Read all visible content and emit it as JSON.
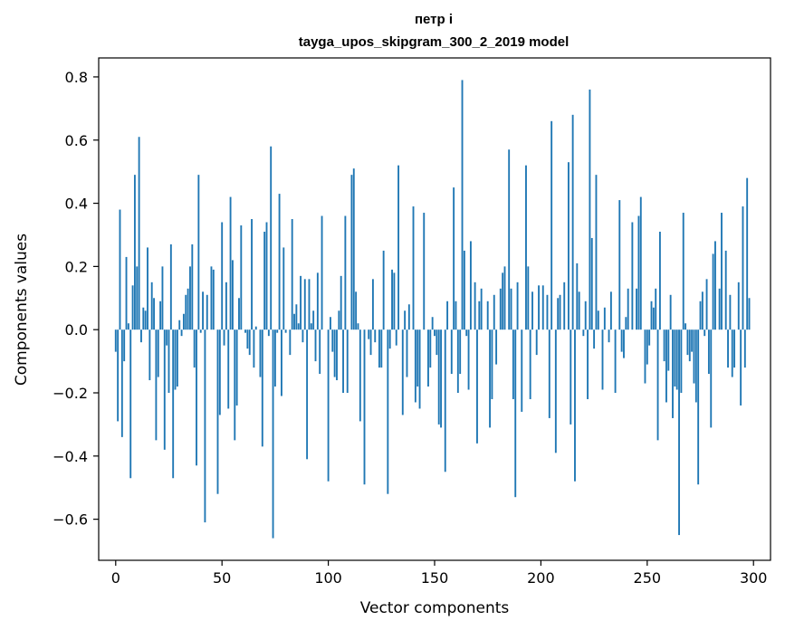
{
  "chart_data": {
    "type": "bar",
    "title": "петр i",
    "subtitle": "tayga_upos_skipgram_300_2_2019 model",
    "xlabel": "Vector components",
    "ylabel": "Components values",
    "xlim": [
      -8,
      308
    ],
    "ylim": [
      -0.73,
      0.86
    ],
    "xticks": [
      0,
      50,
      100,
      150,
      200,
      250,
      300
    ],
    "yticks": [
      -0.6,
      -0.4,
      -0.2,
      0.0,
      0.2,
      0.4,
      0.6,
      0.8
    ],
    "xtick_labels": [
      "0",
      "50",
      "100",
      "150",
      "200",
      "250",
      "300"
    ],
    "ytick_labels": [
      "−0.6",
      "−0.4",
      "−0.2",
      "0.0",
      "0.2",
      "0.4",
      "0.6",
      "0.8"
    ],
    "grid": false,
    "bar_color": "#1f77b4",
    "x": "0..299",
    "values": [
      -0.07,
      -0.29,
      0.38,
      -0.34,
      -0.1,
      0.23,
      0.02,
      -0.47,
      0.14,
      0.49,
      0.2,
      0.61,
      -0.04,
      0.07,
      0.06,
      0.26,
      -0.16,
      0.15,
      0.1,
      -0.35,
      -0.15,
      0.09,
      0.2,
      -0.38,
      -0.05,
      -0.2,
      0.27,
      -0.47,
      -0.19,
      -0.18,
      0.03,
      -0.02,
      0.05,
      0.11,
      0.13,
      0.2,
      0.27,
      -0.12,
      -0.43,
      0.49,
      -0.01,
      0.12,
      -0.61,
      0.11,
      0.0,
      0.2,
      0.19,
      0.0,
      -0.52,
      -0.27,
      0.34,
      -0.05,
      0.15,
      -0.25,
      0.42,
      0.22,
      -0.35,
      -0.24,
      0.1,
      0.33,
      0.0,
      -0.01,
      -0.06,
      -0.08,
      0.35,
      -0.12,
      0.01,
      0.0,
      -0.15,
      -0.37,
      0.31,
      0.34,
      -0.02,
      0.58,
      -0.66,
      -0.18,
      -0.01,
      0.43,
      -0.21,
      0.26,
      -0.01,
      0.0,
      -0.08,
      0.35,
      0.05,
      0.08,
      0.02,
      0.17,
      -0.04,
      0.16,
      -0.41,
      0.16,
      0.02,
      0.06,
      -0.1,
      0.18,
      -0.14,
      0.36,
      0.0,
      0.0,
      -0.48,
      0.04,
      -0.07,
      -0.15,
      -0.16,
      0.06,
      0.17,
      -0.2,
      0.36,
      -0.2,
      0.0,
      0.49,
      0.51,
      0.12,
      0.02,
      -0.29,
      0.0,
      -0.49,
      0.0,
      -0.03,
      -0.08,
      0.16,
      -0.04,
      0.0,
      -0.12,
      -0.12,
      0.25,
      0.0,
      -0.52,
      -0.06,
      0.19,
      0.18,
      -0.05,
      0.52,
      0.0,
      -0.27,
      0.06,
      -0.15,
      0.08,
      0.0,
      0.39,
      -0.23,
      -0.18,
      -0.25,
      0.0,
      0.37,
      0.0,
      -0.18,
      -0.12,
      0.04,
      -0.02,
      -0.08,
      -0.3,
      -0.31,
      0.0,
      -0.45,
      0.09,
      0.0,
      -0.14,
      0.45,
      0.09,
      -0.2,
      -0.14,
      0.79,
      0.25,
      -0.02,
      -0.19,
      0.28,
      0.0,
      0.15,
      -0.36,
      0.09,
      0.13,
      0.0,
      0.0,
      0.09,
      -0.31,
      -0.22,
      0.11,
      -0.11,
      0.0,
      0.13,
      0.18,
      0.2,
      0.0,
      0.57,
      0.13,
      -0.22,
      -0.53,
      0.15,
      0.0,
      -0.26,
      0.0,
      0.52,
      0.2,
      -0.22,
      0.12,
      0.0,
      -0.08,
      0.14,
      0.0,
      0.14,
      0.0,
      0.11,
      -0.28,
      0.66,
      0.0,
      -0.39,
      0.1,
      0.11,
      0.0,
      0.15,
      0.0,
      0.53,
      -0.3,
      0.68,
      -0.48,
      0.21,
      0.12,
      0.0,
      -0.02,
      0.09,
      -0.22,
      0.76,
      0.29,
      -0.06,
      0.49,
      0.06,
      0.0,
      -0.19,
      0.07,
      0.0,
      -0.04,
      0.12,
      0.0,
      -0.2,
      0.0,
      0.41,
      -0.07,
      -0.09,
      0.04,
      0.13,
      0.0,
      0.34,
      0.0,
      0.13,
      0.36,
      0.42,
      0.0,
      -0.17,
      -0.11,
      -0.05,
      0.09,
      0.07,
      0.13,
      -0.35,
      0.31,
      0.0,
      -0.1,
      -0.23,
      -0.13,
      0.11,
      -0.28,
      -0.18,
      -0.19,
      -0.65,
      -0.2,
      0.37,
      0.02,
      -0.08,
      -0.1,
      -0.07,
      -0.17,
      -0.23,
      -0.49,
      0.09,
      0.12,
      -0.02,
      0.16,
      -0.14,
      -0.31,
      0.24,
      0.28,
      0.0,
      0.13,
      0.37,
      0.0,
      0.25,
      -0.12,
      0.11,
      -0.15,
      -0.12,
      0.0,
      0.15,
      -0.24,
      0.39,
      -0.12,
      0.48,
      0.1,
      0.0
    ]
  }
}
